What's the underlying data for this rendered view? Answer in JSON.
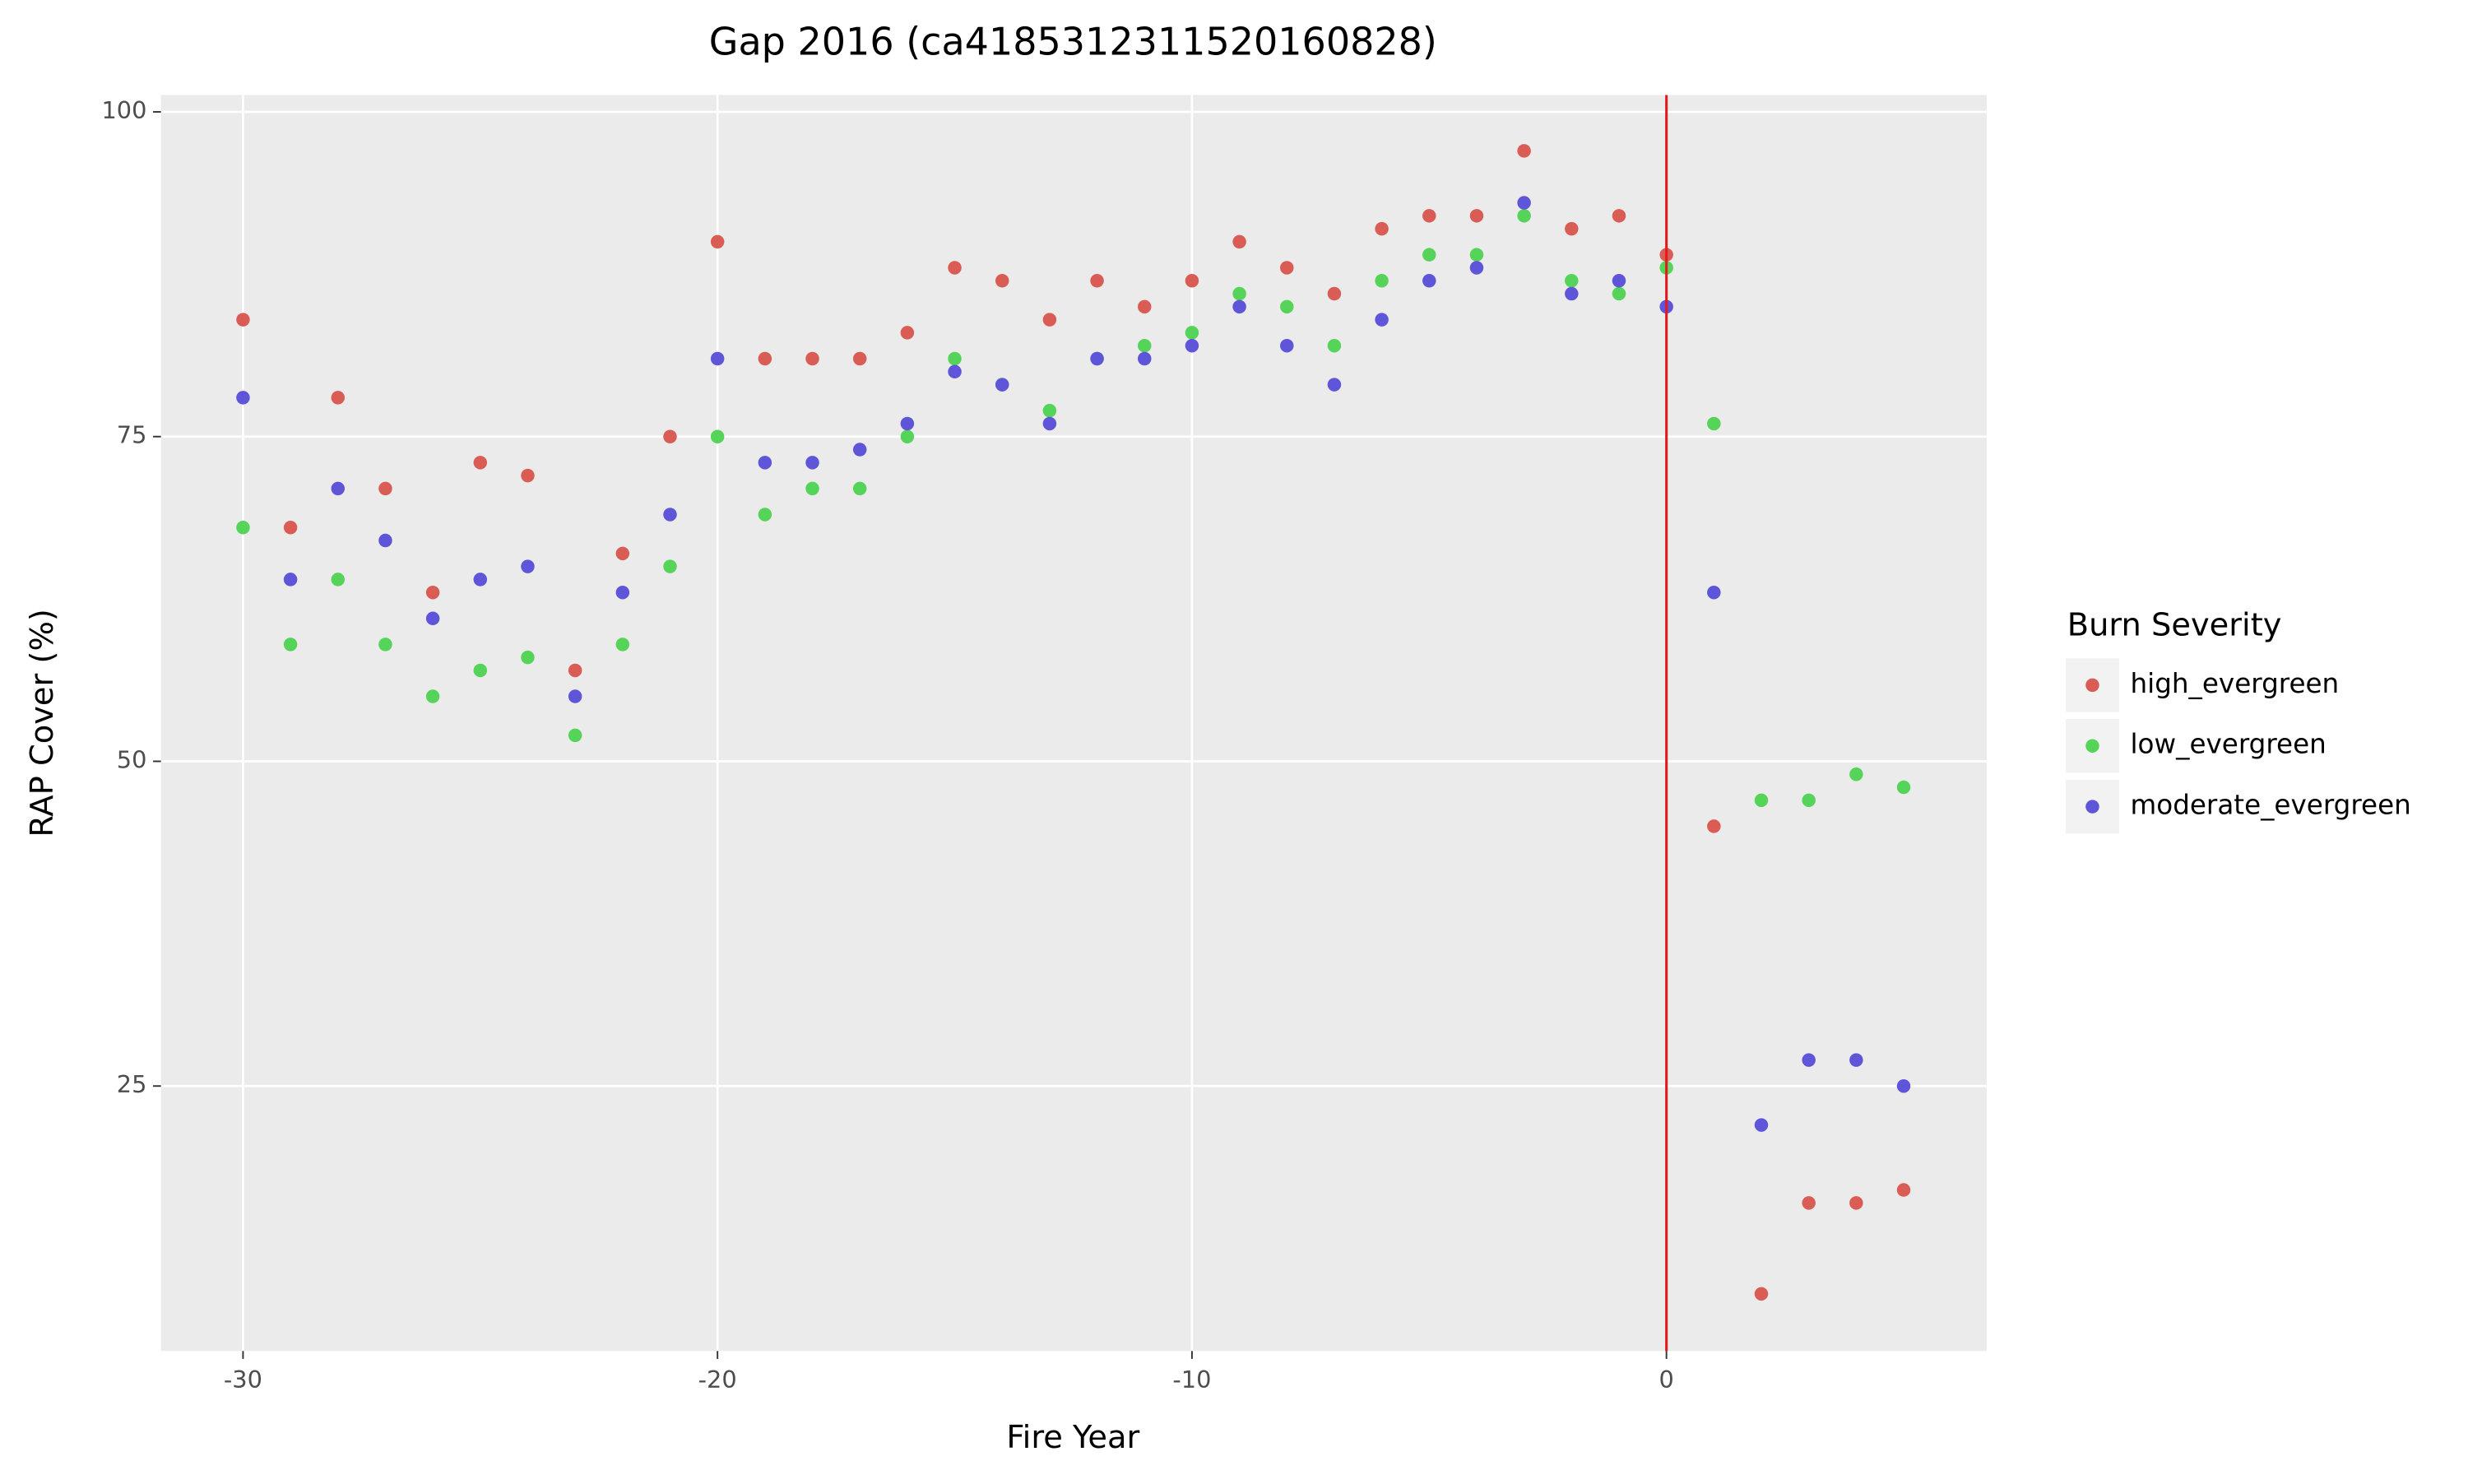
{
  "chart_data": {
    "type": "scatter",
    "title": "Gap 2016 (ca4185312311520160828)",
    "x_label": "Fire Year",
    "y_label": "RAP Cover (%)",
    "legend_title": "Burn Severity",
    "legend_position": "right",
    "x": [
      -30,
      -29,
      -28,
      -27,
      -26,
      -25,
      -24,
      -23,
      -22,
      -21,
      -20,
      -19,
      -18,
      -17,
      -16,
      -15,
      -14,
      -13,
      -12,
      -11,
      -10,
      -9,
      -8,
      -7,
      -6,
      -5,
      -4,
      -3,
      -2,
      -1,
      0,
      1,
      2,
      3,
      4,
      5
    ],
    "series": [
      {
        "name": "high_evergreen",
        "color": "#d95d55",
        "values": [
          84,
          68,
          78,
          71,
          63,
          73,
          72,
          57,
          66,
          75,
          90,
          81,
          81,
          81,
          83,
          88,
          87,
          84,
          87,
          85,
          87,
          90,
          88,
          86,
          91,
          92,
          92,
          97,
          91,
          92,
          89,
          45,
          9,
          16,
          16,
          17
        ]
      },
      {
        "name": "low_evergreen",
        "color": "#56d45a",
        "values": [
          68,
          59,
          64,
          59,
          55,
          57,
          58,
          52,
          59,
          65,
          75,
          69,
          71,
          71,
          75,
          81,
          79,
          77,
          81,
          82,
          83,
          86,
          85,
          82,
          87,
          89,
          89,
          92,
          87,
          86,
          88,
          76,
          47,
          47,
          49,
          48
        ]
      },
      {
        "name": "moderate_evergreen",
        "color": "#5e55d9",
        "values": [
          78,
          64,
          71,
          67,
          61,
          64,
          65,
          55,
          63,
          69,
          81,
          73,
          73,
          74,
          76,
          80,
          79,
          76,
          81,
          81,
          82,
          85,
          82,
          79,
          84,
          87,
          88,
          93,
          86,
          87,
          85,
          63,
          22,
          27,
          27,
          25
        ]
      }
    ],
    "vline": {
      "x": 0,
      "color": "#e31a1c"
    },
    "xlim": [
      -31.73,
      6.75
    ],
    "ylim": [
      4.6,
      101.3
    ],
    "xticks": [
      -30,
      -20,
      -10,
      0
    ],
    "yticks": [
      25,
      50,
      75,
      100
    ],
    "grid": true
  }
}
